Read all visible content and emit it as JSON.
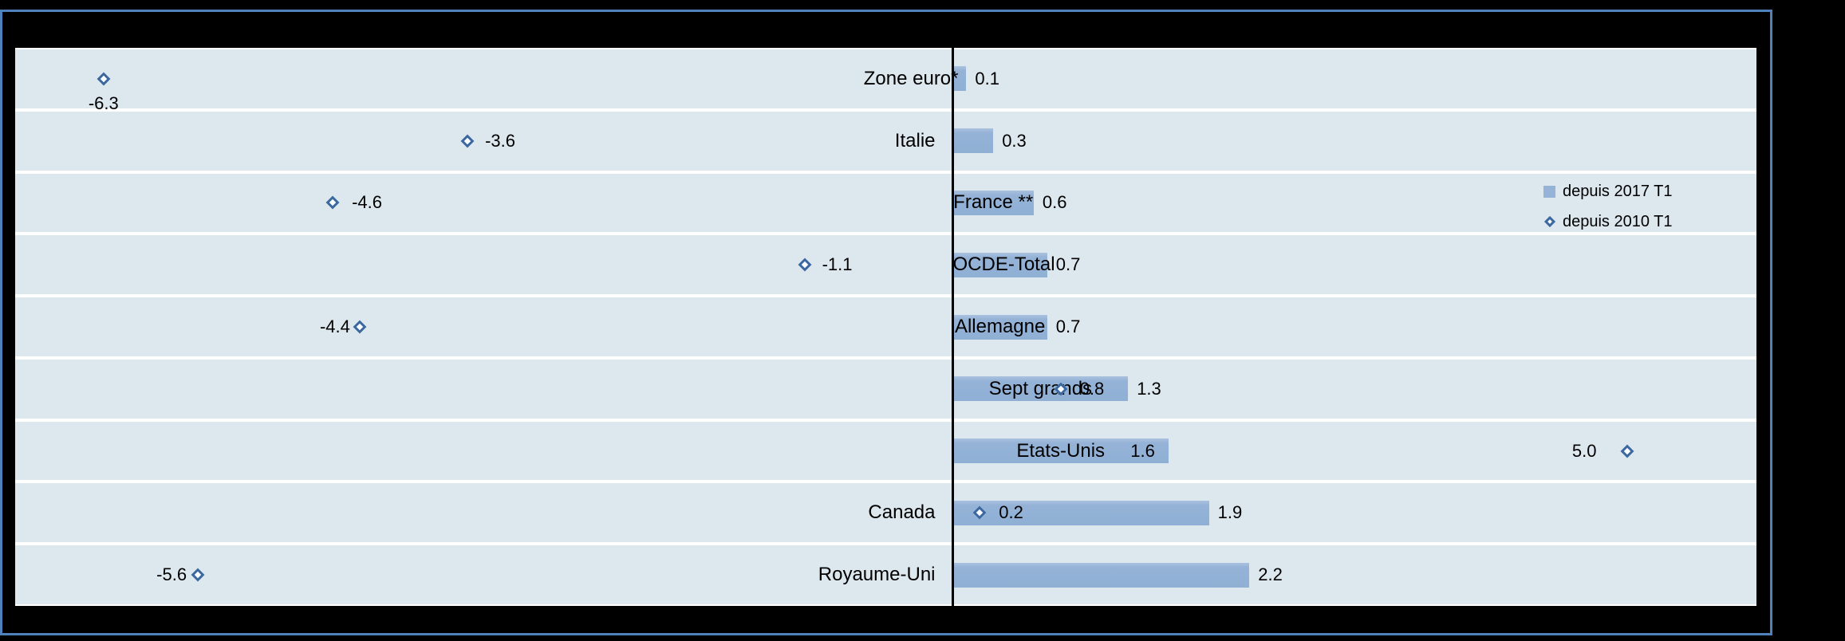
{
  "window": {
    "background_color": "#000000",
    "frame_border_color": "#4f81bd"
  },
  "chart_data": {
    "type": "bar",
    "orientation": "horizontal",
    "title": "",
    "xlabel": "",
    "ylabel": "",
    "xlim": [
      -7,
      6
    ],
    "grid": false,
    "plot_band_color": "#dde7ee",
    "separator_color": "#ffffff",
    "axis_line_color": "#000000",
    "categories": [
      "Zone euro*",
      "Italie",
      "France **",
      "OCDE-Total",
      "Allemagne",
      "Sept grands",
      "Etats-Unis",
      "Canada",
      "Royaume-Uni"
    ],
    "series": [
      {
        "name": "depuis 2017 T1",
        "type": "bar",
        "color": "#95b3d7",
        "values": [
          0.1,
          0.3,
          0.6,
          0.7,
          0.7,
          1.3,
          1.6,
          1.9,
          2.2
        ],
        "labels": [
          "0.1",
          "0.3",
          "0.6",
          "0.7",
          "0.7",
          "1.3",
          "1.6",
          "1.9",
          "2.2"
        ]
      },
      {
        "name": "depuis 2010 T1",
        "type": "scatter",
        "marker": "diamond",
        "marker_border_color": "#3a689f",
        "marker_fill_color": "#ffffff",
        "values": [
          -6.3,
          -3.6,
          -4.6,
          -1.1,
          -4.4,
          0.8,
          5.0,
          0.2,
          -5.6
        ],
        "labels": [
          "-6.3",
          "-3.6",
          "-4.6",
          "-1.1",
          "-4.4",
          "0.8",
          "5.0",
          "0.2",
          "-5.6"
        ]
      }
    ],
    "legend": {
      "position": "right-upper",
      "entries": [
        {
          "label": "depuis 2017 T1",
          "marker": "square",
          "color": "#95b3d7"
        },
        {
          "label": "depuis 2010 T1",
          "marker": "diamond",
          "color": "#3a689f"
        }
      ]
    },
    "rows": [
      {
        "category_placement": "axis-left-flush",
        "bar_label_placement": "outside",
        "diamond_label_placement": "below",
        "diamond_label_gap": 16
      },
      {
        "category_placement": "axis-left",
        "bar_label_placement": "outside",
        "diamond_label_placement": "right",
        "diamond_label_gap": 22
      },
      {
        "category_placement": "inside-bar",
        "bar_label_placement": "outside",
        "diamond_label_placement": "right",
        "diamond_label_gap": 24
      },
      {
        "category_placement": "inside-bar",
        "bar_label_placement": "outside",
        "diamond_label_placement": "right",
        "diamond_label_gap": 22
      },
      {
        "category_placement": "inside-bar",
        "bar_label_placement": "outside",
        "diamond_label_placement": "left",
        "diamond_label_gap": 12
      },
      {
        "category_placement": "inside-bar",
        "bar_label_placement": "outside",
        "diamond_label_placement": "right",
        "diamond_label_gap": 24
      },
      {
        "category_placement": "inside-bar",
        "bar_label_placement": "inside",
        "diamond_label_placement": "left",
        "diamond_label_gap": 38
      },
      {
        "category_placement": "axis-left",
        "bar_label_placement": "outside",
        "diamond_label_placement": "right",
        "diamond_label_gap": 24
      },
      {
        "category_placement": "axis-left",
        "bar_label_placement": "outside",
        "diamond_label_placement": "left",
        "diamond_label_gap": 14
      }
    ]
  }
}
